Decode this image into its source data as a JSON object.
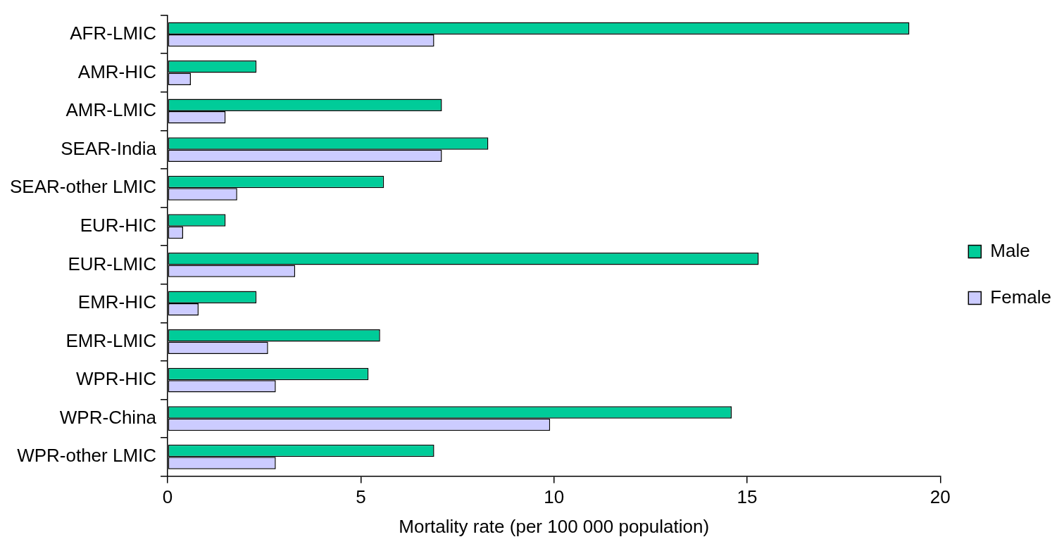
{
  "chart_data": {
    "type": "bar",
    "orientation": "horizontal",
    "xlabel": "Mortality rate (per 100 000 population)",
    "categories": [
      "AFR-LMIC",
      "AMR-HIC",
      "AMR-LMIC",
      "SEAR-India",
      "SEAR-other LMIC",
      "EUR-HIC",
      "EUR-LMIC",
      "EMR-HIC",
      "EMR-LMIC",
      "WPR-HIC",
      "WPR-China",
      "WPR-other LMIC"
    ],
    "series": [
      {
        "name": "Male",
        "color": "#00cc99",
        "values": [
          19.2,
          2.3,
          7.1,
          8.3,
          5.6,
          1.5,
          15.3,
          2.3,
          5.5,
          5.2,
          14.6,
          6.9
        ]
      },
      {
        "name": "Female",
        "color": "#ccccff",
        "values": [
          6.9,
          0.6,
          1.5,
          7.1,
          1.8,
          0.4,
          3.3,
          0.8,
          2.6,
          2.8,
          9.9,
          2.8
        ]
      }
    ],
    "xlim": [
      0,
      20
    ],
    "xticks": [
      0,
      5,
      10,
      15,
      20
    ],
    "grid": false,
    "legend": "right"
  }
}
